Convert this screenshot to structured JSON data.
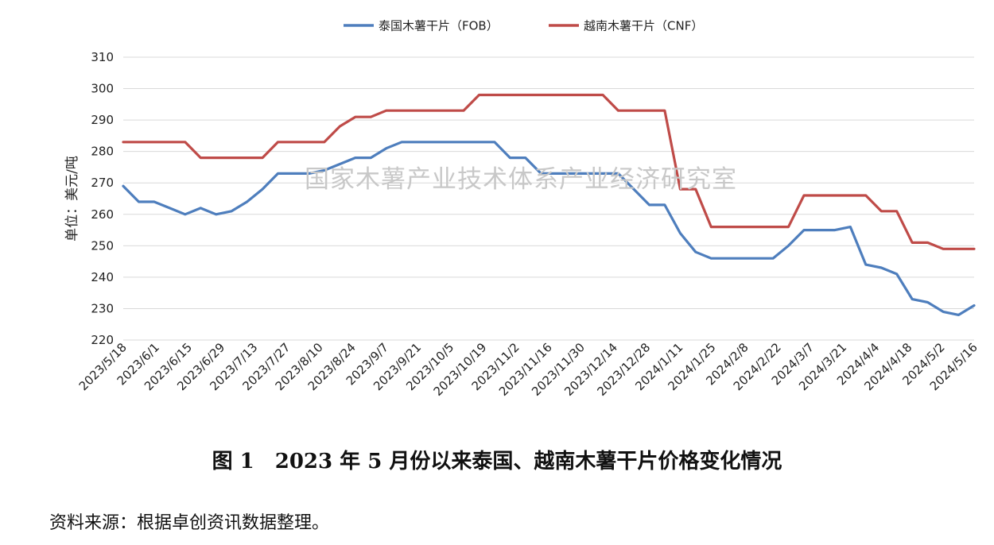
{
  "chart_data": {
    "type": "line",
    "ylabel": "单位：美元/吨",
    "ylim": [
      220,
      310
    ],
    "yticks": [
      220,
      230,
      240,
      250,
      260,
      270,
      280,
      290,
      300,
      310
    ],
    "grid": "horizontal",
    "legend_position": "top",
    "x_tick_labels": [
      "2023/5/18",
      "2023/6/1",
      "2023/6/15",
      "2023/6/29",
      "2023/7/13",
      "2023/7/27",
      "2023/8/10",
      "2023/8/24",
      "2023/9/7",
      "2023/9/21",
      "2023/10/5",
      "2023/10/19",
      "2023/11/2",
      "2023/11/16",
      "2023/11/30",
      "2023/12/14",
      "2023/12/28",
      "2024/1/11",
      "2024/1/25",
      "2024/2/8",
      "2024/2/22",
      "2024/3/7",
      "2024/3/21",
      "2024/4/4",
      "2024/4/18",
      "2024/5/2",
      "2024/5/16"
    ],
    "series": [
      {
        "name": "泰国木薯干片（FOB）",
        "color": "#4e7ebd",
        "values": [
          269,
          264,
          264,
          262,
          260,
          262,
          260,
          261,
          264,
          268,
          273,
          273,
          273,
          274,
          276,
          278,
          278,
          281,
          283,
          283,
          283,
          283,
          283,
          283,
          283,
          278,
          278,
          273,
          273,
          273,
          273,
          273,
          273,
          268,
          263,
          263,
          254,
          248,
          246,
          246,
          246,
          246,
          246,
          250,
          255,
          255,
          255,
          256,
          244,
          243,
          241,
          233,
          232,
          229,
          228,
          231
        ]
      },
      {
        "name": "越南木薯干片（CNF）",
        "color": "#bf4b48",
        "values": [
          283,
          283,
          283,
          283,
          283,
          278,
          278,
          278,
          278,
          278,
          283,
          283,
          283,
          283,
          288,
          291,
          291,
          293,
          293,
          293,
          293,
          293,
          293,
          298,
          298,
          298,
          298,
          298,
          298,
          298,
          298,
          298,
          293,
          293,
          293,
          293,
          268,
          268,
          256,
          256,
          256,
          256,
          256,
          256,
          266,
          266,
          266,
          266,
          266,
          261,
          261,
          251,
          251,
          249,
          249,
          249
        ]
      }
    ],
    "annotation": "国家木薯产业技术体系产业经济研究室"
  },
  "caption": "图 1　2023 年 5 月份以来泰国、越南木薯干片价格变化情况",
  "source": "资料来源：根据卓创资讯数据整理。"
}
